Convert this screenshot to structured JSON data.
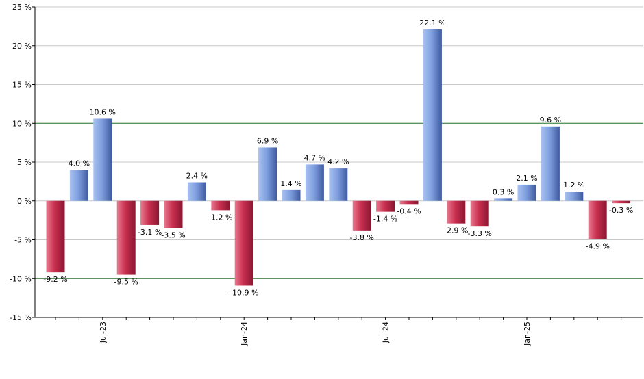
{
  "chart_data": {
    "type": "bar",
    "title": "",
    "xlabel": "",
    "ylabel": "",
    "ylim": [
      -15,
      25
    ],
    "yticks": [
      -15,
      -10,
      -5,
      0,
      5,
      10,
      15,
      20,
      25
    ],
    "ytick_labels": [
      "-15 %",
      "-10 %",
      "-5 %",
      "0 %",
      "5 %",
      "10 %",
      "15 %",
      "20 %",
      "25 %"
    ],
    "grid": true,
    "reference_lines": [
      10,
      -10
    ],
    "colors": {
      "positive": "#6f8fd6",
      "negative": "#c7304f",
      "reference_line": "#2e7d32",
      "grid": "#c8c8c8",
      "axis": "#000000"
    },
    "values": [
      -9.2,
      4.0,
      10.6,
      -9.5,
      -3.1,
      -3.5,
      2.4,
      -1.2,
      -10.9,
      6.9,
      1.4,
      4.7,
      4.2,
      -3.8,
      -1.4,
      -0.4,
      22.1,
      -2.9,
      -3.3,
      0.3,
      2.1,
      9.6,
      1.2,
      -4.9,
      -0.3
    ],
    "value_labels": [
      "-9.2 %",
      "4.0 %",
      "10.6 %",
      "-9.5 %",
      "-3.1 %",
      "-3.5 %",
      "2.4 %",
      "-1.2 %",
      "-10.9 %",
      "6.9 %",
      "1.4 %",
      "4.7 %",
      "4.2 %",
      "-3.8 %",
      "-1.4 %",
      "-0.4 %",
      "22.1 %",
      "-2.9 %",
      "-3.3 %",
      "0.3 %",
      "2.1 %",
      "9.6 %",
      "1.2 %",
      "-4.9 %",
      "-0.3 %"
    ],
    "x_tick_labels": [
      {
        "label": "Jul-23",
        "index": 2
      },
      {
        "label": "Jan-24",
        "index": 8
      },
      {
        "label": "Jul-24",
        "index": 14
      },
      {
        "label": "Jan-25",
        "index": 20
      }
    ]
  }
}
